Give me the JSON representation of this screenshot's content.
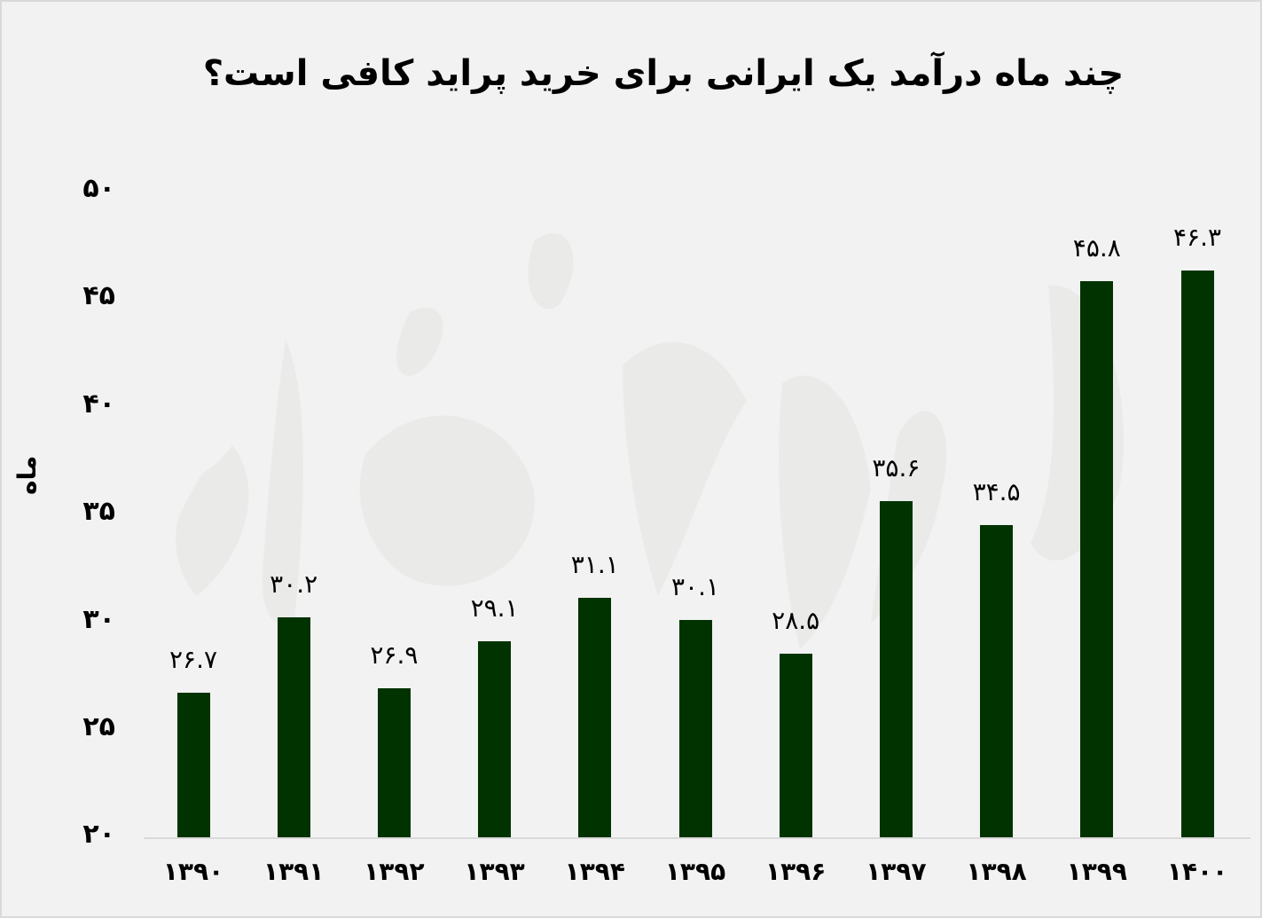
{
  "title": "چند ماه درآمد یک ایرانی برای خرید پراید کافی است؟",
  "colors": {
    "bar": "#003300",
    "background": "#f2f2f2",
    "border": "#d9d9d9",
    "watermark": "#e4e6e3"
  },
  "chart_data": {
    "type": "bar",
    "title": "چند ماه درآمد یک ایرانی برای خرید پراید کافی است؟",
    "xlabel": "",
    "ylabel": "ماه",
    "ylim": [
      20,
      50
    ],
    "yticks": [
      20,
      25,
      30,
      35,
      40,
      45,
      50
    ],
    "ytick_labels": [
      "۲۰",
      "۲۵",
      "۳۰",
      "۳۵",
      "۴۰",
      "۴۵",
      "۵۰"
    ],
    "categories": [
      "۱۳۹۰",
      "۱۳۹۱",
      "۱۳۹۲",
      "۱۳۹۳",
      "۱۳۹۴",
      "۱۳۹۵",
      "۱۳۹۶",
      "۱۳۹۷",
      "۱۳۹۸",
      "۱۳۹۹",
      "۱۴۰۰"
    ],
    "categories_latin": [
      "1390",
      "1391",
      "1392",
      "1393",
      "1394",
      "1395",
      "1396",
      "1397",
      "1398",
      "1399",
      "1400"
    ],
    "values": [
      26.7,
      30.2,
      26.9,
      29.1,
      31.1,
      30.1,
      28.5,
      35.6,
      34.5,
      45.8,
      46.3
    ],
    "value_labels": [
      "۲۶.۷",
      "۳۰.۲",
      "۲۶.۹",
      "۲۹.۱",
      "۳۱.۱",
      "۳۰.۱",
      "۲۸.۵",
      "۳۵.۶",
      "۳۴.۵",
      "۴۵.۸",
      "۴۶.۳"
    ],
    "grid": false,
    "legend": null
  }
}
